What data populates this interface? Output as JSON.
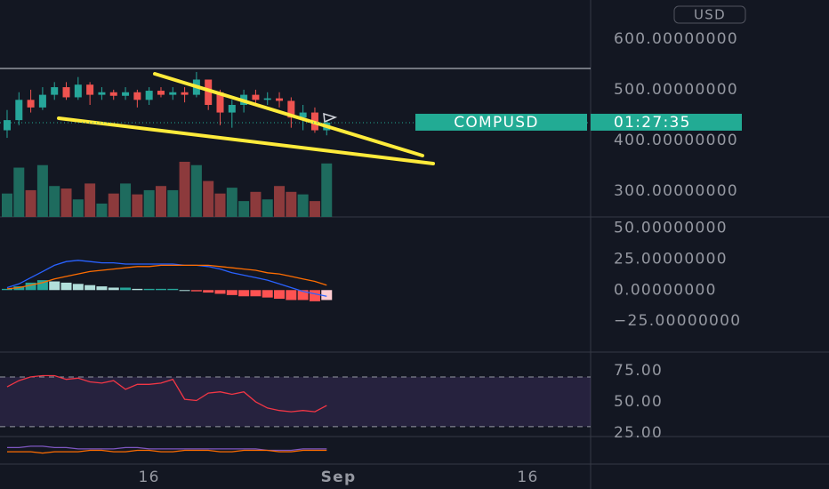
{
  "currency_button": "USD",
  "price_tag": {
    "symbol": "COMPUSD",
    "countdown": "01:27:35",
    "color": "#22ab94"
  },
  "chart_data": [
    {
      "type": "candlestick",
      "x": [
        0,
        1,
        2,
        3,
        4,
        5,
        6,
        7,
        8,
        9,
        10,
        11,
        12,
        13,
        14,
        15,
        16,
        17,
        18,
        19,
        20,
        21,
        22,
        23,
        24,
        25,
        26,
        27
      ],
      "open": [
        420,
        440,
        480,
        465,
        490,
        505,
        485,
        510,
        490,
        495,
        488,
        495,
        480,
        498,
        490,
        495,
        490,
        520,
        495,
        455,
        470,
        490,
        480,
        483,
        478,
        445,
        455,
        420
      ],
      "high": [
        460,
        495,
        500,
        505,
        515,
        515,
        525,
        515,
        505,
        500,
        505,
        500,
        505,
        505,
        505,
        505,
        535,
        520,
        500,
        480,
        500,
        500,
        495,
        495,
        485,
        470,
        465,
        440
      ],
      "low": [
        405,
        430,
        455,
        460,
        480,
        480,
        480,
        470,
        480,
        480,
        480,
        465,
        470,
        485,
        480,
        475,
        485,
        460,
        430,
        425,
        455,
        470,
        470,
        465,
        425,
        420,
        415,
        410
      ],
      "close": [
        440,
        480,
        465,
        490,
        505,
        485,
        510,
        490,
        495,
        488,
        495,
        480,
        498,
        490,
        495,
        490,
        520,
        470,
        455,
        470,
        490,
        480,
        483,
        478,
        445,
        455,
        420,
        435
      ],
      "up_color": "#26a69a",
      "down_color": "#ef5350",
      "xlim": [
        -0.6,
        49.3
      ],
      "xticks": [
        {
          "value": 12,
          "label": "16"
        },
        {
          "value": 28,
          "label": "Sep"
        },
        {
          "value": 44,
          "label": "16"
        }
      ],
      "ylim": [
        249,
        677
      ],
      "yticks": [
        {
          "value": 600,
          "label": "600.00000000"
        },
        {
          "value": 500,
          "label": "500.00000000"
        },
        {
          "value": 400,
          "label": "400.00000000"
        },
        {
          "value": 300,
          "label": "300.00000000"
        }
      ]
    },
    {
      "type": "volume",
      "values": [
        28,
        59,
        32,
        62,
        37,
        34,
        21,
        40,
        16,
        28,
        40,
        27,
        32,
        37,
        32,
        66,
        62,
        43,
        28,
        35,
        19,
        30,
        21,
        37,
        30,
        27,
        19,
        64
      ],
      "up_color": "#1e6b5e",
      "down_color": "#8c3a3c",
      "ylim": [
        0,
        100
      ]
    },
    {
      "type": "macd",
      "series": [
        {
          "color": "#2962ff",
          "values": [
            2,
            5,
            10,
            15,
            20,
            23,
            24,
            23,
            22,
            22,
            21,
            21,
            21,
            21,
            21,
            20,
            20,
            19,
            17,
            14,
            12,
            10,
            8,
            5,
            2,
            -1,
            -3,
            -5
          ]
        },
        {
          "color": "#ff6d00",
          "values": [
            1,
            2,
            4,
            6,
            9,
            11,
            13,
            15,
            16,
            17,
            18,
            19,
            19,
            20,
            20,
            20,
            20,
            20,
            19,
            18,
            17,
            16,
            14,
            13,
            11,
            9,
            7,
            4
          ]
        }
      ],
      "histogram": [
        1,
        3,
        6,
        8,
        7,
        6,
        5,
        4,
        3,
        2,
        2,
        1,
        1,
        1,
        1,
        0,
        -1,
        -2,
        -3,
        -4,
        -5,
        -5,
        -6,
        -7,
        -8,
        -8,
        -9,
        -8
      ],
      "histogram_colors": [
        "#26a69a",
        "#b2dfdb",
        "#ff5252",
        "#ffcdd2"
      ],
      "ylim": [
        -50,
        59
      ],
      "yticks": [
        {
          "value": 50,
          "label": "50.00000000"
        },
        {
          "value": 25,
          "label": "25.00000000"
        },
        {
          "value": 0,
          "label": "0.00000000"
        },
        {
          "value": -25,
          "label": "−25.00000000"
        }
      ]
    },
    {
      "type": "rsi",
      "values": [
        62,
        67,
        70,
        71,
        71,
        68,
        69,
        66,
        65,
        67,
        60,
        64,
        64,
        65,
        68,
        52,
        51,
        57,
        58,
        56,
        58,
        50,
        45,
        43,
        42,
        43,
        42,
        47
      ],
      "color": "#f23645",
      "band": [
        30,
        70
      ],
      "band_color": "#7e57c2",
      "ylim": [
        22,
        90
      ],
      "yticks": [
        {
          "value": 75,
          "label": "75.00"
        },
        {
          "value": 50,
          "label": "50.00"
        },
        {
          "value": 25,
          "label": "25.00"
        }
      ]
    },
    {
      "type": "lines",
      "series": [
        {
          "color": "#7e57c2",
          "values": [
            2,
            2,
            3,
            3,
            2,
            2,
            1,
            1,
            1,
            1,
            2,
            2,
            1,
            1,
            1,
            1,
            1,
            1,
            1,
            1,
            1,
            1,
            0,
            0,
            0,
            1,
            1,
            1
          ]
        },
        {
          "color": "#ff6d00",
          "values": [
            -1,
            -1,
            -1,
            -2,
            -1,
            -1,
            -1,
            0,
            0,
            -1,
            -1,
            0,
            0,
            -1,
            -1,
            0,
            0,
            0,
            -1,
            -1,
            0,
            0,
            0,
            -1,
            -1,
            0,
            0,
            0
          ]
        }
      ],
      "ylim": [
        -10,
        10
      ]
    }
  ]
}
